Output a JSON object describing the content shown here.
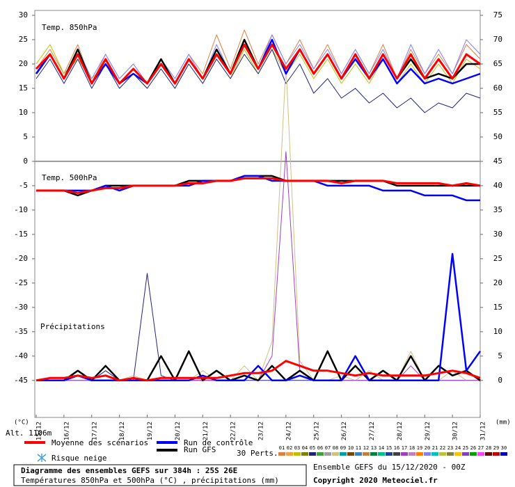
{
  "chart_data": {
    "type": "line",
    "title": "Diagramme des ensembles GEFS sur 384h : 25S 26E",
    "subtitle": "Températures 850hPa et 500hPa (°C) , précipitations (mm)",
    "run_info": "Ensemble GEFS du 15/12/2020 - 00Z",
    "copyright": "Copyright 2020 Meteociel.fr",
    "y_label": "(°C)",
    "y2_label": "(mm)",
    "altitude": "Alt. 1106m",
    "panel_labels": {
      "temp850": "Temp. 850hPa",
      "temp500": "Temp. 500hPa",
      "precip": "Précipitations"
    },
    "snow_label": "Risque neige",
    "perts_label": "30 Perts.",
    "x": [
      0,
      12,
      24,
      36,
      48,
      60,
      72,
      84,
      96,
      108,
      120,
      132,
      144,
      156,
      168,
      180,
      192,
      204,
      216,
      228,
      240,
      252,
      264,
      276,
      288,
      300,
      312,
      324,
      336,
      348,
      360,
      372,
      384
    ],
    "xlim": [
      0,
      384
    ],
    "xticks": [
      {
        "value": 0,
        "label": "15/12"
      },
      {
        "value": 24,
        "label": "16/12"
      },
      {
        "value": 48,
        "label": "17/12"
      },
      {
        "value": 72,
        "label": "18/12"
      },
      {
        "value": 96,
        "label": "19/12"
      },
      {
        "value": 120,
        "label": "20/12"
      },
      {
        "value": 144,
        "label": "21/12"
      },
      {
        "value": 168,
        "label": "22/12"
      },
      {
        "value": 192,
        "label": "23/12"
      },
      {
        "value": 216,
        "label": "24/12"
      },
      {
        "value": 240,
        "label": "25/12"
      },
      {
        "value": 264,
        "label": "26/12"
      },
      {
        "value": 288,
        "label": "27/12"
      },
      {
        "value": 312,
        "label": "28/12"
      },
      {
        "value": 336,
        "label": "29/12"
      },
      {
        "value": 360,
        "label": "30/12"
      },
      {
        "value": 384,
        "label": "31/12"
      }
    ],
    "ylim": [
      -52.6,
      31
    ],
    "yticks": [
      30,
      25,
      20,
      15,
      10,
      5,
      0,
      -5,
      -10,
      -15,
      -20,
      -25,
      -30,
      -35,
      -40,
      -45
    ],
    "y2lim": [
      -7.6,
      76
    ],
    "y2ticks": [
      75,
      70,
      65,
      60,
      55,
      50,
      45,
      40,
      35,
      30,
      25,
      20,
      15,
      10,
      5,
      0
    ],
    "series": [
      {
        "name": "Moyenne des scénarios",
        "color": "#ff0000",
        "temp850": [
          19,
          22,
          17,
          22,
          16,
          21,
          16,
          19,
          16,
          20,
          16,
          21,
          17,
          22,
          18,
          24,
          19,
          24,
          19,
          23,
          18,
          22,
          17,
          22,
          17,
          22,
          17,
          22,
          17,
          21,
          17,
          22,
          20
        ],
        "temp500": [
          -6,
          -6,
          -6,
          -6.5,
          -6,
          -5.5,
          -5.5,
          -5,
          -5,
          -5,
          -5,
          -4.5,
          -4.5,
          -4,
          -4,
          -3.5,
          -3.5,
          -3.5,
          -4,
          -4,
          -4,
          -4,
          -4.5,
          -4,
          -4,
          -4,
          -4.5,
          -4.5,
          -4.5,
          -4.5,
          -5,
          -4.5,
          -5
        ],
        "precip": [
          0,
          0.5,
          0.5,
          1,
          0.5,
          1,
          0,
          0.5,
          0,
          0.5,
          0.5,
          0.5,
          0.5,
          0.5,
          1,
          1.5,
          1.5,
          2,
          4,
          3,
          2,
          2,
          1.5,
          1,
          1.5,
          1,
          1,
          1,
          1,
          1.5,
          2,
          1.5,
          0.5
        ]
      },
      {
        "name": "Run de contrôle",
        "color": "#0000ff",
        "temp850": [
          18,
          22,
          17,
          22,
          16,
          20,
          16,
          18,
          16,
          20,
          16,
          21,
          17,
          22,
          18,
          24,
          19,
          25,
          18,
          23,
          18,
          22,
          17,
          21,
          17,
          21,
          16,
          19,
          16,
          17,
          16,
          17,
          18
        ],
        "temp500": [
          -6,
          -6,
          -6,
          -6,
          -6,
          -5,
          -6,
          -5,
          -5,
          -5,
          -5,
          -5,
          -4,
          -4,
          -4,
          -3,
          -3,
          -4,
          -4,
          -4,
          -4,
          -5,
          -5,
          -5,
          -5,
          -6,
          -6,
          -6,
          -7,
          -7,
          -7,
          -8,
          -8
        ],
        "precip": [
          0,
          0,
          0,
          1,
          0,
          0,
          0,
          0,
          0,
          0,
          0,
          0,
          1,
          0,
          0,
          0,
          3,
          0,
          0,
          1,
          0,
          0,
          0,
          5,
          0,
          0,
          0,
          0,
          0,
          0,
          26,
          2,
          6
        ]
      },
      {
        "name": "Run GFS",
        "color": "#000000",
        "temp850": [
          18,
          22,
          17,
          23,
          16,
          21,
          16,
          19,
          16,
          21,
          16,
          21,
          17,
          23,
          18,
          25,
          19,
          24,
          19,
          23,
          18,
          22,
          17,
          22,
          17,
          22,
          17,
          21,
          17,
          18,
          17,
          20,
          20
        ],
        "temp500": [
          -6,
          -6,
          -6,
          -7,
          -6,
          -5,
          -5,
          -5,
          -5,
          -5,
          -5,
          -4,
          -4,
          -4,
          -4,
          -3,
          -3,
          -3,
          -4,
          -4,
          -4,
          -4,
          -4,
          -4,
          -4,
          -4,
          -5,
          -5,
          -5,
          -5,
          -5,
          -5,
          -5
        ],
        "precip": [
          0,
          0,
          0,
          2,
          0,
          3,
          0,
          0,
          0,
          5,
          0,
          6,
          0,
          2,
          0,
          1,
          0,
          3,
          0,
          2,
          0,
          6,
          0,
          3,
          0,
          2,
          0,
          5,
          0,
          3,
          1,
          2,
          0
        ]
      }
    ],
    "perturbations": [
      {
        "name": "01",
        "color": "#e08040",
        "temp850": [
          19,
          23,
          18,
          24,
          16,
          22,
          17,
          20,
          16,
          21,
          17,
          22,
          18,
          26,
          19,
          27,
          20,
          26,
          20,
          25,
          19,
          24,
          18,
          23,
          18,
          24,
          17,
          23,
          18,
          22,
          18,
          24,
          21
        ]
      },
      {
        "name": "02",
        "color": "#f0a040"
      },
      {
        "name": "03",
        "color": "#c0c000",
        "temp850": [
          20,
          24,
          18,
          21,
          17,
          20,
          16,
          18,
          15,
          19,
          15,
          20,
          16,
          21,
          17,
          23,
          18,
          23,
          18,
          22,
          17,
          21,
          16,
          20,
          16,
          21,
          16,
          20,
          16,
          20,
          16,
          21,
          19
        ]
      },
      {
        "name": "04",
        "color": "#808000"
      },
      {
        "name": "05",
        "color": "#202080",
        "precip": [
          0,
          0,
          0,
          0,
          0,
          2,
          0,
          0,
          22,
          1,
          0,
          0,
          0,
          0,
          0,
          0,
          0,
          0,
          0,
          0,
          0,
          0,
          0,
          0,
          0,
          0,
          0,
          0,
          0,
          0,
          0,
          0,
          0
        ],
        "temp850": [
          17,
          21,
          16,
          21,
          15,
          20,
          15,
          18,
          15,
          19,
          15,
          20,
          16,
          21,
          17,
          22,
          18,
          23,
          16,
          20,
          14,
          17,
          13,
          15,
          12,
          14,
          11,
          13,
          10,
          12,
          11,
          14,
          13
        ]
      },
      {
        "name": "06",
        "color": "#40a040"
      },
      {
        "name": "07",
        "color": "#a0a0a0"
      },
      {
        "name": "08",
        "color": "#d0c080",
        "precip": [
          0,
          0,
          0,
          0,
          0,
          0,
          0,
          1,
          0,
          0,
          0,
          0,
          2,
          0,
          0,
          3,
          0,
          8,
          65,
          4,
          0,
          0,
          1,
          0,
          2,
          0,
          0,
          6,
          0,
          0,
          2,
          0,
          0
        ]
      },
      {
        "name": "09",
        "color": "#00a0a0"
      },
      {
        "name": "10",
        "color": "#804000"
      },
      {
        "name": "11",
        "color": "#4080c0"
      },
      {
        "name": "12",
        "color": "#c08040"
      },
      {
        "name": "13",
        "color": "#008040"
      },
      {
        "name": "14",
        "color": "#00c080"
      },
      {
        "name": "15",
        "color": "#2040a0"
      },
      {
        "name": "16",
        "color": "#404040"
      },
      {
        "name": "17",
        "color": "#a040c0",
        "precip": [
          0,
          0,
          0,
          0,
          0,
          0,
          0,
          0,
          0,
          0,
          0,
          0,
          0,
          0,
          0,
          1,
          0,
          5,
          47,
          2,
          0,
          0,
          0,
          0,
          0,
          0,
          0,
          3,
          0,
          0,
          0,
          0,
          0
        ]
      },
      {
        "name": "18",
        "color": "#c080c0"
      },
      {
        "name": "19",
        "color": "#ff8000"
      },
      {
        "name": "20",
        "color": "#8080ff",
        "temp850": [
          19,
          22,
          17,
          23,
          17,
          22,
          17,
          20,
          16,
          21,
          17,
          22,
          17,
          24,
          18,
          25,
          19,
          26,
          20,
          24,
          19,
          23,
          18,
          23,
          18,
          23,
          17,
          24,
          18,
          23,
          18,
          25,
          22
        ]
      },
      {
        "name": "21",
        "color": "#00c0c0"
      },
      {
        "name": "22",
        "color": "#c0c040"
      },
      {
        "name": "23",
        "color": "#808040"
      },
      {
        "name": "24",
        "color": "#ffc000"
      },
      {
        "name": "25",
        "color": "#8040c0"
      },
      {
        "name": "26",
        "color": "#00a000"
      },
      {
        "name": "27",
        "color": "#ff40ff"
      },
      {
        "name": "28",
        "color": "#600000"
      },
      {
        "name": "29",
        "color": "#c00000"
      },
      {
        "name": "30",
        "color": "#0000c0"
      }
    ]
  }
}
